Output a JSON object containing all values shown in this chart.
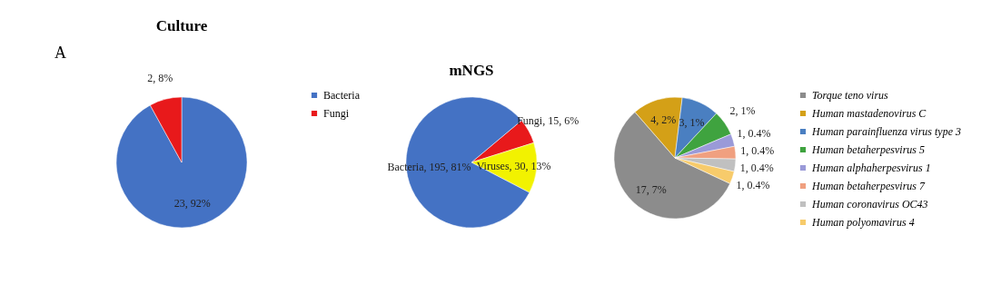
{
  "chart_data": [
    {
      "type": "pie",
      "title": "Culture",
      "annotations": [
        "A"
      ],
      "categories": [
        "Bacteria",
        "Fungi"
      ],
      "values": [
        23,
        2
      ],
      "colors": [
        "#4472c4",
        "#e8191b"
      ],
      "value_labels": [
        "23, 92%",
        "2, 8%"
      ],
      "legend": "right"
    },
    {
      "type": "pie",
      "title": "mNGS",
      "categories": [
        "Fungi",
        "Viruses",
        "Bacteria"
      ],
      "values": [
        15,
        30,
        195
      ],
      "colors": [
        "#e8191b",
        "#f2f200",
        "#4472c4"
      ],
      "value_labels": [
        "15, 6%",
        "30, 13%",
        "195, 81%"
      ],
      "legend": false
    },
    {
      "type": "pie",
      "categories": [
        "Torque teno virus",
        "Human mastadenovirus C",
        "Human parainfluenza virus type 3",
        "Human betaherpesvirus 5",
        "Human alphaherpesvirus 1",
        "Human betaherpesvirus 7",
        "Human coronavirus OC43",
        "Human polyomavirus 4"
      ],
      "values": [
        17,
        4,
        3,
        2,
        1,
        1,
        1,
        1
      ],
      "colors": [
        "#8c8c8c",
        "#d4a017",
        "#4a7fc1",
        "#3fa33f",
        "#9a9ad8",
        "#f0a080",
        "#c0c0c0",
        "#f7cb6b"
      ],
      "value_labels": [
        "17, 7%",
        "4, 2%",
        "3, 1%",
        "2, 1%",
        "1, 0.4%",
        "1, 0.4%",
        "1, 0.4%",
        "1, 0.4%"
      ],
      "legend": "right"
    }
  ]
}
